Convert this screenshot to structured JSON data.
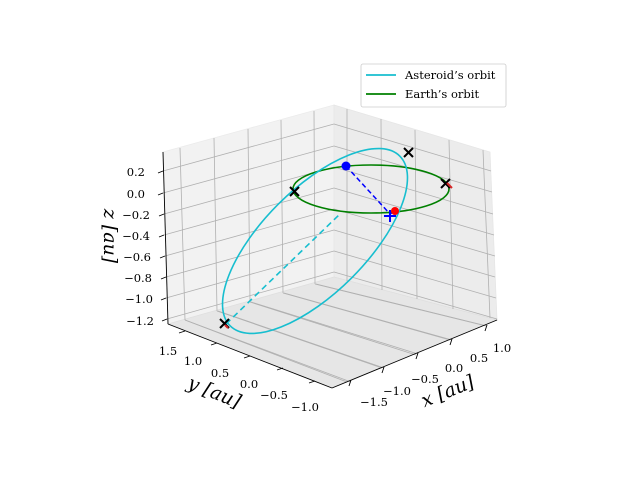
{
  "chart_data": {
    "type": "line",
    "projection": "3d",
    "title": "",
    "axes": {
      "x": {
        "label": "x [au]",
        "ticks": [
          "−1.5",
          "−1.0",
          "−0.5",
          "0.0",
          "0.5",
          "1.0"
        ]
      },
      "y": {
        "label": "y [au]",
        "ticks": [
          "−1.0",
          "−0.5",
          "0.0",
          "0.5",
          "1.0",
          "1.5"
        ]
      },
      "z": {
        "label": "z [au]",
        "ticks": [
          "0.2",
          "0.0",
          "−0.2",
          "−0.4",
          "−0.6",
          "−0.8",
          "−1.0",
          "−1.2"
        ]
      }
    },
    "grid": true,
    "legend_position": "top-right",
    "series": [
      {
        "name": "Asteroid’s orbit",
        "color": "#17becf",
        "style": "solid; hidden part dashed"
      },
      {
        "name": "Earth’s orbit",
        "color": "#008000",
        "style": "solid"
      }
    ],
    "markers": {
      "crosses": {
        "symbol": "x",
        "color": "#000000",
        "count": 4
      },
      "red_points": {
        "symbol": "x",
        "color": "#d62728",
        "count": 2
      },
      "blue_points": {
        "symbol": "circle",
        "color": "#0000ff",
        "count": 1
      },
      "blue_plus": {
        "symbol": "plus",
        "color": "#0000ff",
        "count": 1
      },
      "connector": {
        "style": "dashed",
        "color": "#0000ff"
      }
    }
  }
}
